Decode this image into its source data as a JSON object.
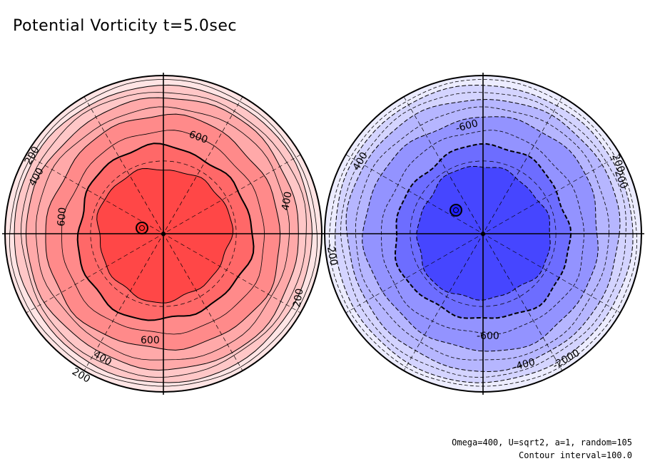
{
  "title": "Potential Vorticity t=5.0sec",
  "footnote": {
    "params": "Omega=400, U=sqrt2, a=1, random=105",
    "contour_interval": "Contour interval=100.0"
  },
  "colors": {
    "red_levels": [
      "#ffe4e4",
      "#ffc7c7",
      "#ffa9a9",
      "#ff8a8a",
      "#ff6868",
      "#ff4747"
    ],
    "blue_levels": [
      "#ececff",
      "#d4d4ff",
      "#b6b6ff",
      "#9393ff",
      "#6d6dff",
      "#4646ff"
    ],
    "line": "#000000"
  },
  "chart_data": [
    {
      "type": "heatmap",
      "projection": "polar",
      "hemisphere": "north",
      "colormap": "red",
      "contour_levels": [
        0,
        100,
        200,
        300,
        400,
        500,
        600
      ],
      "contour_labels": [
        "200",
        "400",
        "600",
        "600",
        "400",
        "200",
        "600",
        "400",
        "200"
      ],
      "grid": true
    },
    {
      "type": "heatmap",
      "projection": "polar",
      "hemisphere": "south",
      "colormap": "blue",
      "contour_levels": [
        0,
        -100,
        -200,
        -300,
        -400,
        -500,
        -600
      ],
      "contour_labels": [
        "-600",
        "400",
        "200",
        "-200",
        "-600",
        "-400",
        "-2000",
        "-200"
      ],
      "grid": true
    }
  ]
}
